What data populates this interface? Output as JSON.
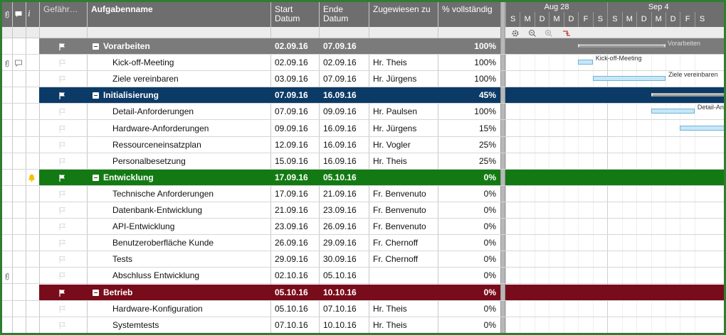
{
  "header": {
    "info": "i",
    "columns": [
      "Gefähr…",
      "Aufgabenname",
      "Start Datum",
      "Ende Datum",
      "Zugewiesen zu",
      "% vollständig"
    ]
  },
  "gantt": {
    "weeks": [
      "Aug 28",
      "Sep 4"
    ],
    "days": [
      "S",
      "M",
      "D",
      "M",
      "D",
      "F",
      "S",
      "S",
      "M",
      "D",
      "M",
      "D",
      "F",
      "S"
    ]
  },
  "rows": [
    {
      "name": "Vorarbeiten",
      "start": "02.09.16",
      "end": "07.09.16",
      "complete": "100%",
      "group": true,
      "color": "#7b7b7b"
    },
    {
      "name": "Kick-off-Meeting",
      "start": "02.09.16",
      "end": "02.09.16",
      "assigned": "Hr. Theis",
      "complete": "100%",
      "attachment": true,
      "comment": true
    },
    {
      "name": "Ziele vereinbaren",
      "start": "03.09.16",
      "end": "07.09.16",
      "assigned": "Hr. Jürgens",
      "complete": "100%"
    },
    {
      "name": "Initialisierung",
      "start": "07.09.16",
      "end": "16.09.16",
      "complete": "45%",
      "group": true,
      "color": "#0c3a66"
    },
    {
      "name": "Detail-Anforderungen",
      "start": "07.09.16",
      "end": "09.09.16",
      "assigned": "Hr. Paulsen",
      "complete": "100%"
    },
    {
      "name": "Hardware-Anforderungen",
      "start": "09.09.16",
      "end": "16.09.16",
      "assigned": "Hr. Jürgens",
      "complete": "15%"
    },
    {
      "name": "Ressourceneinsatzplan",
      "start": "12.09.16",
      "end": "16.09.16",
      "assigned": "Hr. Vogler",
      "complete": "25%"
    },
    {
      "name": "Personalbesetzung",
      "start": "15.09.16",
      "end": "16.09.16",
      "assigned": "Hr. Theis",
      "complete": "25%"
    },
    {
      "name": "Entwicklung",
      "start": "17.09.16",
      "end": "05.10.16",
      "complete": "0%",
      "group": true,
      "color": "#137a13",
      "alert": true
    },
    {
      "name": "Technische Anforderungen",
      "start": "17.09.16",
      "end": "21.09.16",
      "assigned": "Fr. Benvenuto",
      "complete": "0%"
    },
    {
      "name": "Datenbank-Entwicklung",
      "start": "21.09.16",
      "end": "23.09.16",
      "assigned": "Fr. Benvenuto",
      "complete": "0%"
    },
    {
      "name": "API-Entwicklung",
      "start": "23.09.16",
      "end": "26.09.16",
      "assigned": "Fr. Benvenuto",
      "complete": "0%"
    },
    {
      "name": "Benutzeroberfläche Kunde",
      "start": "26.09.16",
      "end": "29.09.16",
      "assigned": "Fr. Chernoff",
      "complete": "0%"
    },
    {
      "name": "Tests",
      "start": "29.09.16",
      "end": "30.09.16",
      "assigned": "Fr. Chernoff",
      "complete": "0%"
    },
    {
      "name": "Abschluss Entwicklung",
      "start": "02.10.16",
      "end": "05.10.16",
      "complete": "0%",
      "attachment": true
    },
    {
      "name": "Betrieb",
      "start": "05.10.16",
      "end": "10.10.16",
      "complete": "0%",
      "group": true,
      "color": "#790c1a"
    },
    {
      "name": "Hardware-Konfiguration",
      "start": "05.10.16",
      "end": "07.10.16",
      "assigned": "Hr. Theis",
      "complete": "0%"
    },
    {
      "name": "Systemtests",
      "start": "07.10.16",
      "end": "10.10.16",
      "assigned": "Hr. Theis",
      "complete": "0%"
    }
  ]
}
